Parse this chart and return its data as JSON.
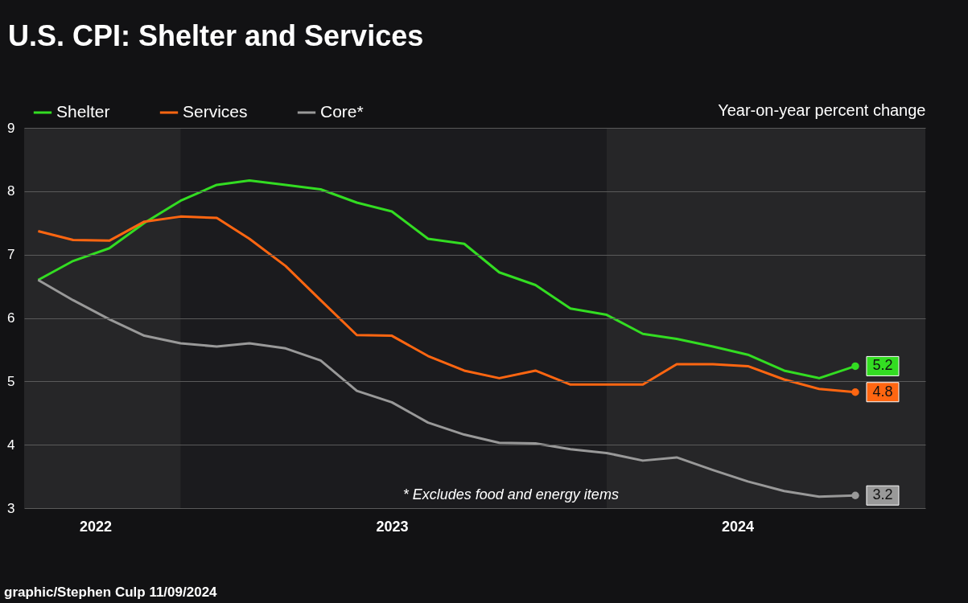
{
  "chart_data": {
    "type": "line",
    "title": "U.S. CPI: Shelter and Services",
    "ylabel": "Year-on-year percent change",
    "x": [
      "2022-09",
      "2022-10",
      "2022-11",
      "2022-12",
      "2023-01",
      "2023-02",
      "2023-03",
      "2023-04",
      "2023-05",
      "2023-06",
      "2023-07",
      "2023-08",
      "2023-09",
      "2023-10",
      "2023-11",
      "2023-12",
      "2024-01",
      "2024-02",
      "2024-03",
      "2024-04",
      "2024-05",
      "2024-06",
      "2024-07",
      "2024-08"
    ],
    "series": [
      {
        "name": "Shelter",
        "color": "#33dd22",
        "values": [
          6.6,
          6.9,
          7.1,
          7.5,
          7.85,
          8.1,
          8.17,
          8.1,
          8.03,
          7.82,
          7.68,
          7.25,
          7.17,
          6.72,
          6.52,
          6.15,
          6.05,
          5.75,
          5.67,
          5.55,
          5.42,
          5.17,
          5.05,
          5.24
        ],
        "value_labels": [
          null,
          null,
          null,
          null,
          null,
          null,
          null,
          null,
          null,
          null,
          null,
          null,
          null,
          null,
          null,
          null,
          null,
          null,
          null,
          null,
          null,
          null,
          null,
          "5.2"
        ]
      },
      {
        "name": "Services",
        "color": "#ff6611",
        "values": [
          7.37,
          7.23,
          7.22,
          7.52,
          7.6,
          7.58,
          7.25,
          6.82,
          6.28,
          5.73,
          5.72,
          5.4,
          5.17,
          5.05,
          5.17,
          4.95,
          4.95,
          4.95,
          5.27,
          5.27,
          5.24,
          5.03,
          4.88,
          4.83
        ],
        "value_labels": [
          null,
          null,
          null,
          null,
          null,
          null,
          null,
          null,
          null,
          null,
          null,
          null,
          null,
          null,
          null,
          null,
          null,
          null,
          null,
          null,
          null,
          null,
          null,
          "4.8"
        ]
      },
      {
        "name": "Core*",
        "color": "#999999",
        "values": [
          6.6,
          6.28,
          5.98,
          5.72,
          5.6,
          5.55,
          5.6,
          5.52,
          5.33,
          4.85,
          4.67,
          4.35,
          4.16,
          4.03,
          4.02,
          3.93,
          3.87,
          3.75,
          3.8,
          3.6,
          3.42,
          3.27,
          3.18,
          3.2
        ],
        "value_labels": [
          null,
          null,
          null,
          null,
          null,
          null,
          null,
          null,
          null,
          null,
          null,
          null,
          null,
          null,
          null,
          null,
          null,
          null,
          null,
          null,
          null,
          null,
          null,
          "3.2"
        ]
      }
    ],
    "xlim": [
      "2022-08-20",
      "2024-09-30"
    ],
    "xticks": [
      {
        "value": "2022-10-20",
        "label": "2022"
      },
      {
        "value": "2023-07-01",
        "label": "2023"
      },
      {
        "value": "2024-04-22",
        "label": "2024"
      }
    ],
    "ylim": [
      3,
      9
    ],
    "yticks": [
      3,
      4,
      5,
      6,
      7,
      8,
      9
    ],
    "bands": [
      {
        "axis": "x",
        "from": "2022-08-20",
        "to": "2023-01-01",
        "color": "#262628"
      },
      {
        "axis": "x",
        "from": "2024-01-01",
        "to": "2024-09-30",
        "color": "#262628"
      }
    ],
    "grid": "y",
    "legend": "top left",
    "line_style": "solid",
    "annotations": [
      "* Excludes food and energy items",
      "graphic/Stephen Culp 11/09/2024"
    ]
  }
}
